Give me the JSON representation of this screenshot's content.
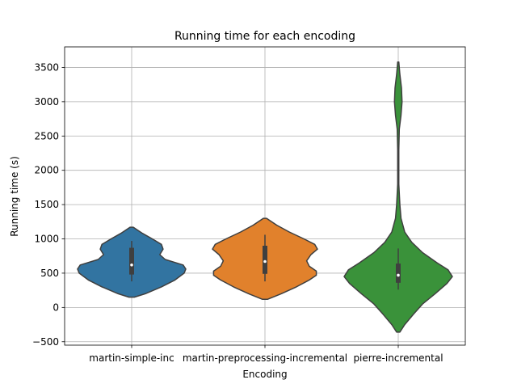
{
  "chart_data": {
    "type": "violin",
    "title": "Running time for each encoding",
    "xlabel": "Encoding",
    "ylabel": "Running time (s)",
    "ylim": [
      -550,
      3800
    ],
    "yticks": [
      -500,
      0,
      500,
      1000,
      1500,
      2000,
      2500,
      3000,
      3500
    ],
    "ytick_labels": [
      "−500",
      "0",
      "500",
      "1000",
      "1500",
      "2000",
      "2500",
      "3000",
      "3500"
    ],
    "grid": true,
    "categories": [
      "martin-simple-inc",
      "martin-preprocessing-incremental",
      "pierre-incremental"
    ],
    "violins": [
      {
        "name": "martin-simple-inc",
        "color": "#3274a1",
        "min": 150,
        "max": 1170,
        "q1": 480,
        "median": 620,
        "q3": 870,
        "whisker_low": 380,
        "whisker_high": 970,
        "density": [
          [
            150,
            0.05
          ],
          [
            200,
            0.25
          ],
          [
            300,
            0.55
          ],
          [
            400,
            0.8
          ],
          [
            500,
            0.97
          ],
          [
            560,
            1.0
          ],
          [
            620,
            0.95
          ],
          [
            700,
            0.62
          ],
          [
            770,
            0.52
          ],
          [
            850,
            0.58
          ],
          [
            920,
            0.55
          ],
          [
            1000,
            0.38
          ],
          [
            1080,
            0.2
          ],
          [
            1170,
            0.03
          ]
        ]
      },
      {
        "name": "martin-preprocessing-incremental",
        "color": "#e1812c",
        "min": 120,
        "max": 1300,
        "q1": 490,
        "median": 670,
        "q3": 900,
        "whisker_low": 380,
        "whisker_high": 1060,
        "density": [
          [
            120,
            0.05
          ],
          [
            200,
            0.3
          ],
          [
            300,
            0.58
          ],
          [
            400,
            0.82
          ],
          [
            470,
            0.95
          ],
          [
            530,
            0.95
          ],
          [
            600,
            0.82
          ],
          [
            680,
            0.77
          ],
          [
            770,
            0.85
          ],
          [
            850,
            0.97
          ],
          [
            920,
            0.92
          ],
          [
            1000,
            0.72
          ],
          [
            1100,
            0.45
          ],
          [
            1200,
            0.22
          ],
          [
            1300,
            0.03
          ]
        ]
      },
      {
        "name": "pierre-incremental",
        "color": "#3a923a",
        "min": -360,
        "max": 3580,
        "q1": 360,
        "median": 470,
        "q3": 640,
        "whisker_low": 260,
        "whisker_high": 860,
        "density": [
          [
            -360,
            0.03
          ],
          [
            -250,
            0.12
          ],
          [
            -100,
            0.28
          ],
          [
            50,
            0.45
          ],
          [
            200,
            0.68
          ],
          [
            350,
            0.9
          ],
          [
            450,
            1.0
          ],
          [
            550,
            0.92
          ],
          [
            650,
            0.72
          ],
          [
            800,
            0.45
          ],
          [
            950,
            0.25
          ],
          [
            1100,
            0.12
          ],
          [
            1300,
            0.05
          ],
          [
            1500,
            0.03
          ],
          [
            1800,
            0.01
          ],
          [
            2300,
            0.01
          ],
          [
            2600,
            0.02
          ],
          [
            2800,
            0.05
          ],
          [
            3000,
            0.07
          ],
          [
            3200,
            0.06
          ],
          [
            3400,
            0.03
          ],
          [
            3580,
            0.01
          ]
        ]
      }
    ]
  }
}
